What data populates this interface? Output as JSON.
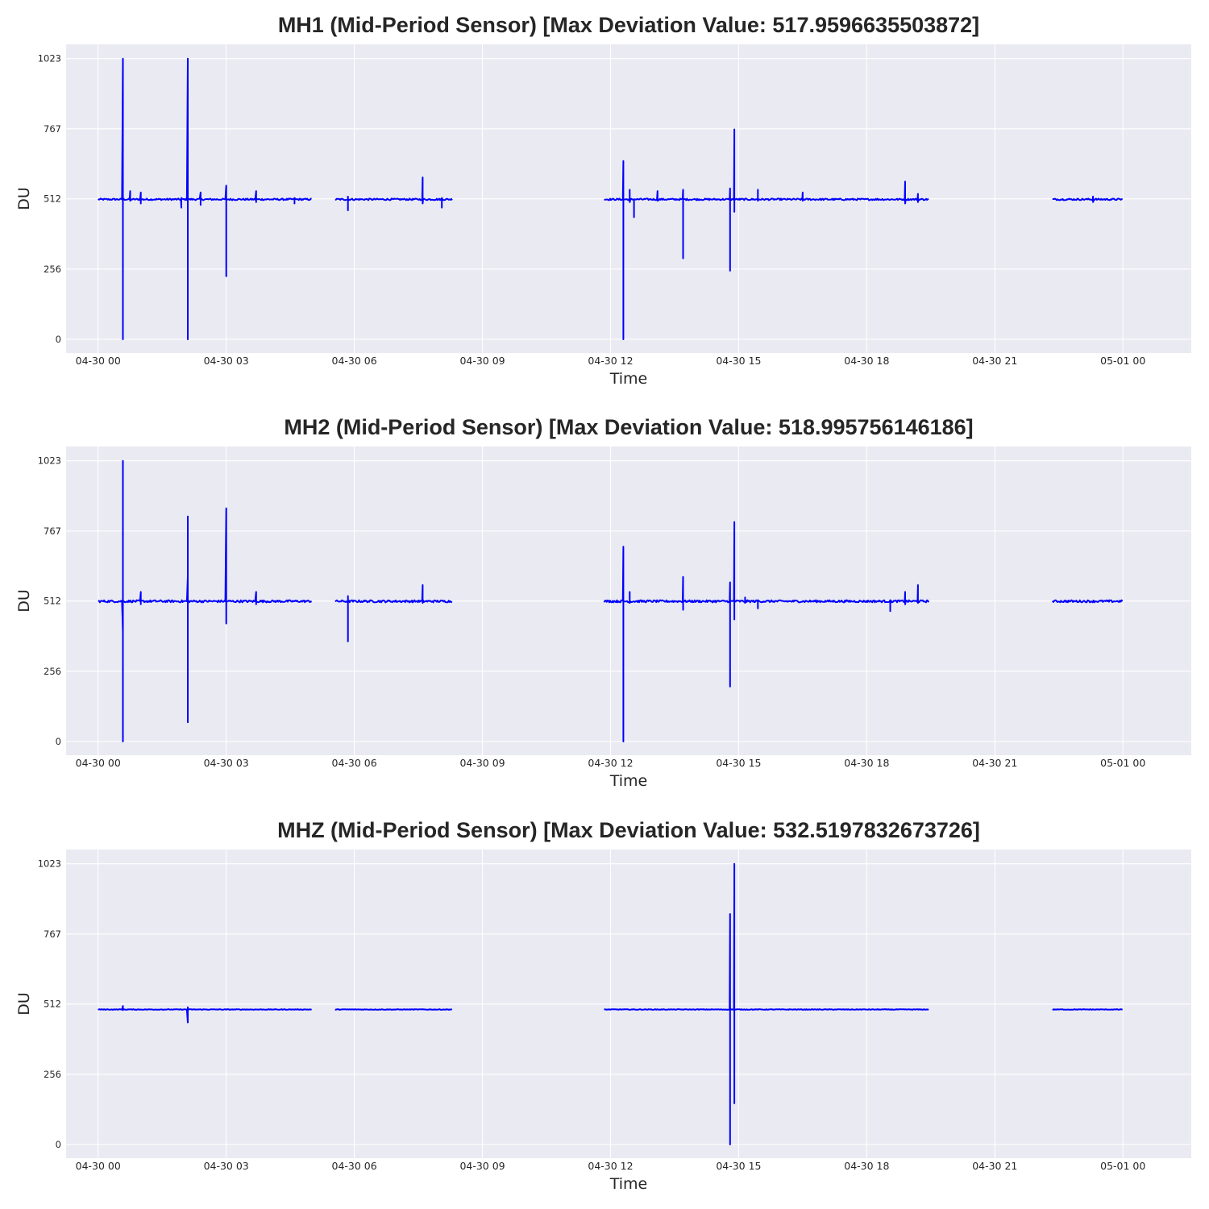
{
  "colors": {
    "line": "#0000ff",
    "plot_background": "#eaeaf2",
    "grid": "#ffffff",
    "text": "#262626"
  },
  "chart_data": [
    {
      "type": "line",
      "title": "MH1 (Mid-Period Sensor)     [Max Deviation Value: 517.9596635503872]",
      "xlabel": "Time",
      "ylabel": "DU",
      "xlim_hours": [
        -0.75,
        25.6
      ],
      "ylim": [
        -50,
        1075
      ],
      "yticks": [
        0,
        256,
        512,
        767,
        1023
      ],
      "ytick_labels": [
        "0",
        "256",
        "512",
        "767",
        "1023"
      ],
      "xticks_hours": [
        0,
        3,
        6,
        9,
        12,
        15,
        18,
        21,
        24
      ],
      "xtick_labels": [
        "04-30 00",
        "04-30 03",
        "04-30 06",
        "04-30 09",
        "04-30 12",
        "04-30 15",
        "04-30 18",
        "04-30 21",
        "05-01 00"
      ],
      "grid": true,
      "baseline": 510,
      "noise": 3,
      "segments": [
        [
          0,
          5.0
        ],
        [
          5.55,
          8.3
        ],
        [
          11.85,
          19.45
        ],
        [
          22.35,
          24.0
        ]
      ],
      "spikes": [
        {
          "t": 0.58,
          "values": [
            1023,
            0,
            515
          ]
        },
        {
          "t": 0.75,
          "values": [
            540,
            505
          ]
        },
        {
          "t": 1.0,
          "values": [
            535,
            495,
            510
          ]
        },
        {
          "t": 1.95,
          "values": [
            480,
            515
          ]
        },
        {
          "t": 2.1,
          "values": [
            1023,
            300,
            0,
            490,
            510
          ]
        },
        {
          "t": 2.4,
          "values": [
            535,
            490
          ]
        },
        {
          "t": 3.0,
          "values": [
            560,
            230,
            510
          ]
        },
        {
          "t": 3.7,
          "values": [
            540,
            500
          ]
        },
        {
          "t": 4.6,
          "values": [
            495,
            515
          ]
        },
        {
          "t": 5.85,
          "values": [
            470,
            520,
            505
          ]
        },
        {
          "t": 7.6,
          "values": [
            590,
            495
          ]
        },
        {
          "t": 8.05,
          "values": [
            480,
            515
          ]
        },
        {
          "t": 12.3,
          "values": [
            650,
            0,
            540,
            510
          ]
        },
        {
          "t": 12.45,
          "values": [
            545,
            500
          ]
        },
        {
          "t": 12.55,
          "values": [
            445,
            510
          ]
        },
        {
          "t": 13.1,
          "values": [
            540,
            505
          ]
        },
        {
          "t": 13.7,
          "values": [
            545,
            295,
            510
          ]
        },
        {
          "t": 14.8,
          "values": [
            550,
            250,
            510
          ]
        },
        {
          "t": 14.9,
          "values": [
            765,
            465,
            515
          ]
        },
        {
          "t": 15.45,
          "values": [
            545,
            505
          ]
        },
        {
          "t": 16.5,
          "values": [
            535,
            505
          ]
        },
        {
          "t": 18.9,
          "values": [
            575,
            495
          ]
        },
        {
          "t": 19.2,
          "values": [
            530,
            500
          ]
        },
        {
          "t": 23.3,
          "values": [
            520,
            500
          ]
        }
      ]
    },
    {
      "type": "line",
      "title": "MH2 (Mid-Period Sensor)     [Max Deviation Value: 518.995756146186]",
      "xlabel": "Time",
      "ylabel": "DU",
      "xlim_hours": [
        -0.75,
        25.6
      ],
      "ylim": [
        -50,
        1075
      ],
      "yticks": [
        0,
        256,
        512,
        767,
        1023
      ],
      "ytick_labels": [
        "0",
        "256",
        "512",
        "767",
        "1023"
      ],
      "xticks_hours": [
        0,
        3,
        6,
        9,
        12,
        15,
        18,
        21,
        24
      ],
      "xtick_labels": [
        "04-30 00",
        "04-30 03",
        "04-30 06",
        "04-30 09",
        "04-30 12",
        "04-30 15",
        "04-30 18",
        "04-30 21",
        "05-01 00"
      ],
      "grid": true,
      "baseline": 511,
      "noise": 4,
      "segments": [
        [
          0,
          5.0
        ],
        [
          5.55,
          8.3
        ],
        [
          11.85,
          19.45
        ],
        [
          22.35,
          24.0
        ]
      ],
      "spikes": [
        {
          "t": 0.58,
          "values": [
            400,
            0,
            1023,
            515
          ]
        },
        {
          "t": 1.0,
          "values": [
            545,
            500
          ]
        },
        {
          "t": 2.1,
          "values": [
            600,
            70,
            820,
            430,
            510
          ]
        },
        {
          "t": 3.0,
          "values": [
            850,
            430,
            510
          ]
        },
        {
          "t": 3.7,
          "values": [
            545,
            500
          ]
        },
        {
          "t": 5.85,
          "values": [
            365,
            530,
            512
          ]
        },
        {
          "t": 7.6,
          "values": [
            570,
            505
          ]
        },
        {
          "t": 12.3,
          "values": [
            710,
            0,
            545,
            510
          ]
        },
        {
          "t": 12.45,
          "values": [
            545,
            505
          ]
        },
        {
          "t": 13.7,
          "values": [
            600,
            480,
            510
          ]
        },
        {
          "t": 14.8,
          "values": [
            580,
            200,
            510
          ]
        },
        {
          "t": 14.9,
          "values": [
            800,
            445,
            515
          ]
        },
        {
          "t": 15.15,
          "values": [
            525,
            505
          ]
        },
        {
          "t": 15.45,
          "values": [
            485,
            515
          ]
        },
        {
          "t": 18.55,
          "values": [
            475,
            515
          ]
        },
        {
          "t": 18.9,
          "values": [
            545,
            500
          ]
        },
        {
          "t": 19.2,
          "values": [
            570,
            505
          ]
        }
      ]
    },
    {
      "type": "line",
      "title": "MHZ (Mid-Period Sensor)     [Max Deviation Value: 532.5197832673726]",
      "xlabel": "Time",
      "ylabel": "DU",
      "xlim_hours": [
        -0.75,
        25.6
      ],
      "ylim": [
        -50,
        1075
      ],
      "yticks": [
        0,
        256,
        512,
        767,
        1023
      ],
      "ytick_labels": [
        "0",
        "256",
        "512",
        "767",
        "1023"
      ],
      "xticks_hours": [
        0,
        3,
        6,
        9,
        12,
        15,
        18,
        21,
        24
      ],
      "xtick_labels": [
        "04-30 00",
        "04-30 03",
        "04-30 06",
        "04-30 09",
        "04-30 12",
        "04-30 15",
        "04-30 18",
        "04-30 21",
        "05-01 00"
      ],
      "grid": true,
      "baseline": 492,
      "noise": 1.2,
      "segments": [
        [
          0,
          5.0
        ],
        [
          5.55,
          8.3
        ],
        [
          11.85,
          19.45
        ],
        [
          22.35,
          24.0
        ]
      ],
      "spikes": [
        {
          "t": 0.58,
          "values": [
            505,
            490
          ]
        },
        {
          "t": 2.1,
          "values": [
            445,
            500,
            492
          ]
        },
        {
          "t": 14.8,
          "values": [
            840,
            0,
            500
          ]
        },
        {
          "t": 14.9,
          "values": [
            1023,
            150,
            470,
            492
          ]
        }
      ]
    }
  ]
}
